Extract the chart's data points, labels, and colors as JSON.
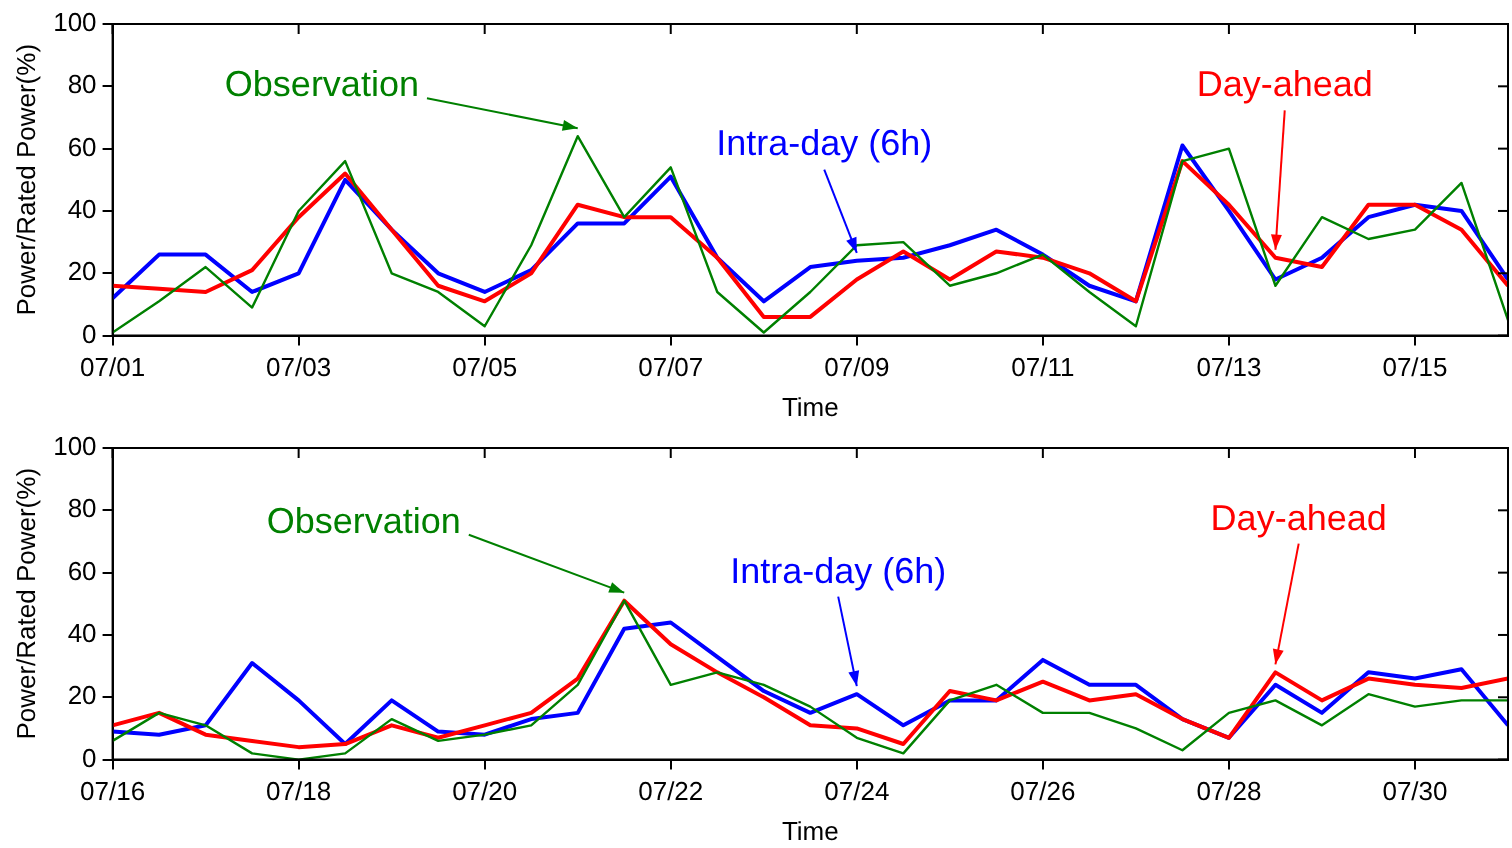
{
  "chart_data": [
    {
      "type": "line",
      "xlabel": "Time",
      "ylabel": "Power/Rated Power(%)",
      "marker": "none",
      "x": [
        "--07-01T00:00",
        "--07-01T12:00",
        "--07-02T00:00",
        "--07-02T12:00",
        "--07-03T00:00",
        "--07-03T12:00",
        "--07-04T00:00",
        "--07-04T12:00",
        "--07-05T00:00",
        "--07-05T12:00",
        "--07-06T00:00",
        "--07-06T12:00",
        "--07-07T00:00",
        "--07-07T12:00",
        "--07-08T00:00",
        "--07-08T12:00",
        "--07-09T00:00",
        "--07-09T12:00",
        "--07-10T00:00",
        "--07-10T12:00",
        "--07-11T00:00",
        "--07-11T12:00",
        "--07-12T00:00",
        "--07-12T12:00",
        "--07-13T00:00",
        "--07-13T12:00",
        "--07-14T00:00",
        "--07-14T12:00",
        "--07-15T00:00",
        "--07-15T12:00",
        "--07-16T00:00"
      ],
      "series": [
        {
          "name": "Observation",
          "color": "#008000",
          "values": [
            1,
            11,
            22,
            9,
            40,
            56,
            20,
            14,
            3,
            29,
            64,
            38,
            54,
            14,
            1,
            14,
            29,
            30,
            16,
            20,
            26,
            14,
            3,
            56,
            60,
            16,
            38,
            31,
            34,
            49,
            5
          ]
        },
        {
          "name": "Day-ahead",
          "color": "#ff0000",
          "values": [
            16,
            15,
            14,
            21,
            38,
            52,
            34,
            16,
            11,
            20,
            42,
            38,
            38,
            25,
            6,
            6,
            18,
            27,
            18,
            27,
            25,
            20,
            11,
            56,
            42,
            25,
            22,
            42,
            42,
            34,
            16
          ]
        },
        {
          "name": "Intra-day (6h)",
          "color": "#0000ff",
          "values": [
            12,
            26,
            26,
            14,
            20,
            50,
            34,
            20,
            14,
            21,
            36,
            36,
            51,
            25,
            11,
            22,
            24,
            25,
            29,
            34,
            26,
            16,
            11,
            61,
            40,
            18,
            25,
            38,
            42,
            40,
            18
          ]
        }
      ],
      "xlim": [
        "--07-01",
        "--07-16"
      ],
      "xticks": [
        {
          "value": "--07-01",
          "label": "07/01"
        },
        {
          "value": "--07-03",
          "label": "07/03"
        },
        {
          "value": "--07-05",
          "label": "07/05"
        },
        {
          "value": "--07-07",
          "label": "07/07"
        },
        {
          "value": "--07-09",
          "label": "07/09"
        },
        {
          "value": "--07-11",
          "label": "07/11"
        },
        {
          "value": "--07-13",
          "label": "07/13"
        },
        {
          "value": "--07-15",
          "label": "07/15"
        }
      ],
      "ylim": [
        0,
        100
      ],
      "yticks": [
        0,
        20,
        40,
        60,
        80,
        100
      ]
    },
    {
      "type": "line",
      "xlabel": "Time",
      "ylabel": "Power/Rated Power(%)",
      "marker": "none",
      "x": [
        "--07-16T00:00",
        "--07-16T12:00",
        "--07-17T00:00",
        "--07-17T12:00",
        "--07-18T00:00",
        "--07-18T12:00",
        "--07-19T00:00",
        "--07-19T12:00",
        "--07-20T00:00",
        "--07-20T12:00",
        "--07-21T00:00",
        "--07-21T12:00",
        "--07-22T00:00",
        "--07-22T12:00",
        "--07-23T00:00",
        "--07-23T12:00",
        "--07-24T00:00",
        "--07-24T12:00",
        "--07-25T00:00",
        "--07-25T12:00",
        "--07-26T00:00",
        "--07-26T12:00",
        "--07-27T00:00",
        "--07-27T12:00",
        "--07-28T00:00",
        "--07-28T12:00",
        "--07-29T00:00",
        "--07-29T12:00",
        "--07-30T00:00",
        "--07-30T12:00",
        "--07-31T00:00"
      ],
      "series": [
        {
          "name": "Observation",
          "color": "#008000",
          "values": [
            6,
            15,
            11,
            2,
            0,
            2,
            13,
            6,
            8,
            11,
            24,
            51,
            24,
            28,
            24,
            17,
            7,
            2,
            19,
            24,
            15,
            15,
            10,
            3,
            15,
            19,
            11,
            21,
            17,
            19,
            19
          ]
        },
        {
          "name": "Day-ahead",
          "color": "#ff0000",
          "values": [
            11,
            15,
            8,
            6,
            4,
            5,
            11,
            7,
            11,
            15,
            26,
            51,
            37,
            28,
            20,
            11,
            10,
            5,
            22,
            19,
            25,
            19,
            21,
            13,
            7,
            28,
            19,
            26,
            24,
            23,
            26
          ]
        },
        {
          "name": "Intra-day (6h)",
          "color": "#0000ff",
          "values": [
            9,
            8,
            11,
            31,
            19,
            5,
            19,
            9,
            8,
            13,
            15,
            42,
            44,
            33,
            22,
            15,
            21,
            11,
            19,
            19,
            32,
            24,
            24,
            13,
            7,
            24,
            15,
            28,
            26,
            29,
            11
          ]
        }
      ],
      "xlim": [
        "--07-16",
        "--07-31"
      ],
      "xticks": [
        {
          "value": "--07-16",
          "label": "07/16"
        },
        {
          "value": "--07-18",
          "label": "07/18"
        },
        {
          "value": "--07-20",
          "label": "07/20"
        },
        {
          "value": "--07-22",
          "label": "07/22"
        },
        {
          "value": "--07-24",
          "label": "07/24"
        },
        {
          "value": "--07-26",
          "label": "07/26"
        },
        {
          "value": "--07-28",
          "label": "07/28"
        },
        {
          "value": "--07-30",
          "label": "07/30"
        }
      ],
      "ylim": [
        0,
        100
      ],
      "yticks": [
        0,
        20,
        40,
        60,
        80,
        100
      ]
    }
  ]
}
